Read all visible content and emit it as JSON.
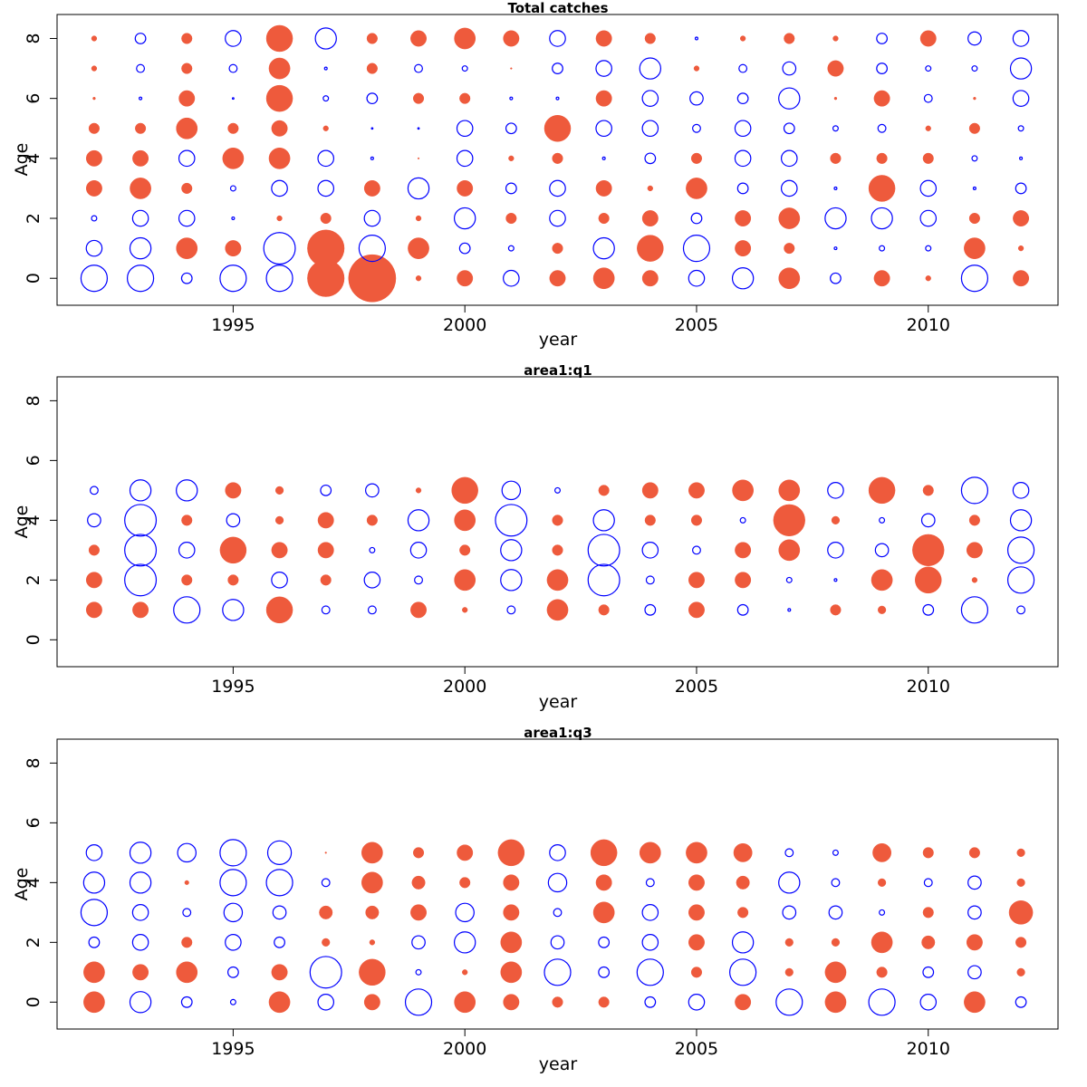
{
  "colors": {
    "positive": "#ee5a3c",
    "negative": "#0000ff"
  },
  "chart_data": [
    {
      "type": "scatter",
      "title": "Total catches",
      "xlabel": "year",
      "ylabel": "Age",
      "xlim": [
        1991.2,
        2012.8
      ],
      "ylim": [
        -0.9,
        8.8
      ],
      "xticks": [
        1995,
        2000,
        2005,
        2010
      ],
      "yticks": [
        0,
        2,
        4,
        6,
        8
      ],
      "years": [
        1992,
        1993,
        1994,
        1995,
        1996,
        1997,
        1998,
        1999,
        2000,
        2001,
        2002,
        2003,
        2004,
        2005,
        2006,
        2007,
        2008,
        2009,
        2010,
        2011,
        2012
      ],
      "ages": [
        0,
        1,
        2,
        3,
        4,
        5,
        6,
        7,
        8
      ],
      "values": [
        [
          -5,
          -5,
          -2,
          -5,
          -5,
          7,
          9,
          1,
          3,
          -3,
          3,
          4,
          3,
          -3,
          -4,
          4,
          -2,
          3,
          1,
          -5,
          3
        ],
        [
          -3,
          -4,
          4,
          3,
          -6,
          7,
          -5,
          4,
          -2,
          -1,
          2,
          -4,
          5,
          -5,
          3,
          2,
          -0.5,
          -1,
          -1,
          4,
          1
        ],
        [
          -1,
          -3,
          -3,
          -0.5,
          1,
          2,
          -3,
          1,
          -4,
          2,
          -3,
          2,
          3,
          -2,
          3,
          4,
          -4,
          -4,
          -3,
          2,
          3
        ],
        [
          3,
          4,
          2,
          -1,
          -3,
          -3,
          3,
          -4,
          3,
          -2,
          -3,
          3,
          1,
          4,
          -2,
          -3,
          -0.5,
          5,
          -3,
          -0.5,
          -2
        ],
        [
          3,
          3,
          -3,
          4,
          4,
          -3,
          -0.5,
          0.1,
          -3,
          1,
          2,
          -0.5,
          -2,
          2,
          -3,
          -3,
          2,
          2,
          2,
          -1,
          -0.5
        ],
        [
          2,
          2,
          4,
          2,
          3,
          1,
          -0.2,
          -0.2,
          -3,
          -2,
          5,
          -3,
          -3,
          -1.5,
          -3,
          -2,
          -1,
          -1.5,
          1,
          2,
          -1
        ],
        [
          0.5,
          -0.5,
          3,
          -0.3,
          5,
          -1,
          -2,
          2,
          2,
          -0.5,
          -0.5,
          3,
          -3,
          -2.5,
          -2,
          -4,
          0.5,
          3,
          -1.5,
          0.5,
          -3
        ],
        [
          1,
          -1.5,
          2,
          -1.5,
          4,
          -0.5,
          2,
          -1.5,
          -1,
          0.3,
          -2,
          -3,
          -4,
          1,
          -1.5,
          -2.5,
          3,
          -2,
          -1,
          -1,
          -4
        ],
        [
          1,
          -2,
          2,
          -3,
          5,
          -4,
          2,
          3,
          4,
          3,
          -3,
          3,
          2,
          -0.5,
          1,
          2,
          1,
          -2,
          3,
          -2.5,
          -3
        ]
      ]
    },
    {
      "type": "scatter",
      "title": "area1:q1",
      "xlabel": "year",
      "ylabel": "Age",
      "xlim": [
        1991.2,
        2012.8
      ],
      "ylim": [
        -0.9,
        8.8
      ],
      "xticks": [
        1995,
        2000,
        2005,
        2010
      ],
      "yticks": [
        0,
        2,
        4,
        6,
        8
      ],
      "years": [
        1992,
        1993,
        1994,
        1995,
        1996,
        1997,
        1998,
        1999,
        2000,
        2001,
        2002,
        2003,
        2004,
        2005,
        2006,
        2007,
        2008,
        2009,
        2010,
        2011,
        2012
      ],
      "ages": [
        0,
        1,
        2,
        3,
        4,
        5,
        6,
        7,
        8
      ],
      "values": [
        [],
        [
          3,
          3,
          -5,
          -4,
          5,
          -1.5,
          -1.5,
          3,
          1,
          -1.5,
          4,
          2,
          -2,
          3,
          -2,
          -0.5,
          2,
          1.5,
          -2,
          -5,
          -1.5
        ],
        [
          3,
          -6,
          2,
          2,
          -3,
          2,
          -3,
          -1.5,
          4,
          -4,
          4,
          -6,
          -1.5,
          3,
          3,
          -1,
          -0.5,
          4,
          5,
          1,
          -5
        ],
        [
          2,
          -6,
          -3,
          5,
          3,
          3,
          -1,
          -3,
          2,
          -4,
          2,
          -6,
          -3,
          -1.5,
          3,
          4,
          -3,
          -2.5,
          6,
          3,
          -5
        ],
        [
          -2.5,
          -6,
          2,
          -2.5,
          1.5,
          3,
          2,
          -4,
          4,
          -6,
          2,
          -4,
          2,
          2,
          -1,
          6,
          1.5,
          -1,
          -2.5,
          2,
          -4
        ],
        [
          -1.5,
          -4,
          -4,
          3,
          1.5,
          -2,
          -2.5,
          1,
          5,
          -3.5,
          -1,
          2,
          3,
          3,
          4,
          4,
          -3,
          5,
          2,
          -5,
          -3
        ],
        [],
        [],
        []
      ]
    },
    {
      "type": "scatter",
      "title": "area1:q3",
      "xlabel": "year",
      "ylabel": "Age",
      "xlim": [
        1991.2,
        2012.8
      ],
      "ylim": [
        -0.9,
        8.8
      ],
      "xticks": [
        1995,
        2000,
        2005,
        2010
      ],
      "yticks": [
        0,
        2,
        4,
        6,
        8
      ],
      "years": [
        1992,
        1993,
        1994,
        1995,
        1996,
        1997,
        1998,
        1999,
        2000,
        2001,
        2002,
        2003,
        2004,
        2005,
        2006,
        2007,
        2008,
        2009,
        2010,
        2011,
        2012
      ],
      "ages": [
        0,
        1,
        2,
        3,
        4,
        5,
        6,
        7,
        8
      ],
      "values": [
        [
          4,
          -4,
          -2,
          -1,
          4,
          -3,
          3,
          -5,
          4,
          3,
          2,
          2,
          -2,
          -3,
          3,
          -5,
          4,
          -5,
          -3,
          4,
          -2
        ],
        [
          4,
          3,
          4,
          -2,
          3,
          -6,
          5,
          -1,
          1,
          4,
          -5,
          -2,
          -5,
          2,
          -5,
          1.5,
          4,
          2,
          -2,
          -2.5,
          1.5
        ],
        [
          -2,
          -3,
          2,
          -3,
          -2,
          1.5,
          1,
          -2.5,
          -4,
          4,
          -2.5,
          -2,
          -3,
          3,
          -4,
          1.5,
          1.5,
          4,
          2.5,
          3,
          2
        ],
        [
          -5,
          -3,
          -1.5,
          -3.5,
          -2.5,
          2.5,
          2.5,
          3,
          -3.5,
          3,
          -1.5,
          4,
          -3,
          3,
          2,
          -2.5,
          -2.5,
          -1,
          2,
          -2.5,
          4.5
        ],
        [
          -4,
          -4,
          0.8,
          -5,
          -5,
          -1.5,
          4,
          2.5,
          2,
          3,
          -3.5,
          3,
          -1.5,
          3,
          2.5,
          -4,
          -1.5,
          1.5,
          -1.5,
          -2.5,
          1.5
        ],
        [
          -3,
          -4,
          -3.5,
          -5,
          -4.5,
          0.3,
          4,
          2,
          3,
          5,
          -3,
          5,
          4,
          4,
          3.5,
          -1.5,
          -1,
          3.5,
          2,
          2,
          1.5
        ],
        [],
        [],
        []
      ]
    }
  ]
}
